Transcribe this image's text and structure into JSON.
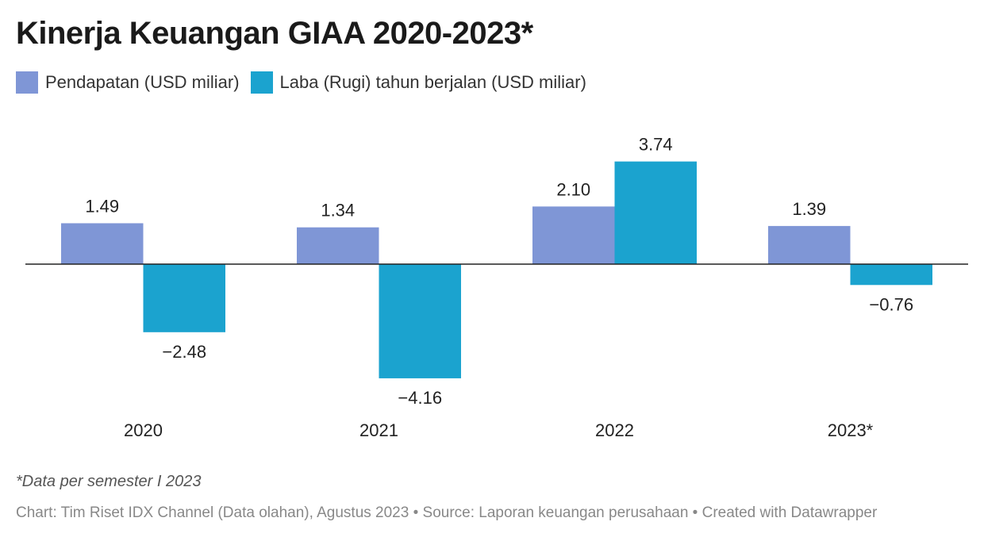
{
  "chart_data": {
    "type": "bar",
    "title": "Kinerja Keuangan GIAA 2020-2023*",
    "categories": [
      "2020",
      "2021",
      "2022",
      "2023*"
    ],
    "series": [
      {
        "name": "Pendapatan (USD miliar)",
        "values": [
          1.49,
          1.34,
          2.1,
          1.39
        ],
        "color": "#7f96d6"
      },
      {
        "name": "Laba (Rugi) tahun berjalan (USD miliar)",
        "values": [
          -2.48,
          -4.16,
          3.74,
          -0.76
        ],
        "color": "#1ba3cf"
      }
    ],
    "value_labels": [
      [
        "1.49",
        "1.34",
        "2.10",
        "1.39"
      ],
      [
        "−2.48",
        "−4.16",
        "3.74",
        "−0.76"
      ]
    ],
    "ylim": [
      -4.16,
      3.74
    ],
    "grid": false,
    "legend_position": "top-left",
    "xlabel": "",
    "ylabel": ""
  },
  "footnote": "*Data per semester I 2023",
  "credits": "Chart: Tim Riset IDX Channel (Data olahan), Agustus 2023 • Source: Laporan keuangan perusahaan • Created with Datawrapper"
}
